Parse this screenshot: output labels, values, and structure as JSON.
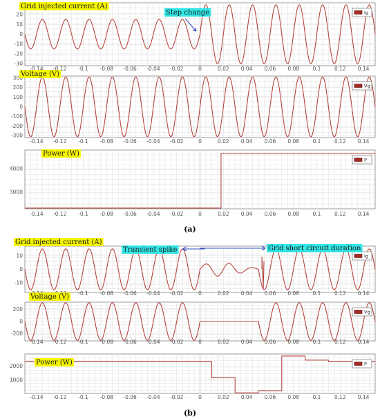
{
  "figures": [
    {
      "caption": "(a)",
      "panels": [
        {
          "id": "a-current",
          "label": "Grid injected current (A)",
          "legend": "Ig",
          "annotations": [
            {
              "text": "Step change",
              "points_to_x": 0
            }
          ]
        },
        {
          "id": "a-voltage",
          "label": "Voltage (V)",
          "legend": "Vg",
          "annotations": []
        },
        {
          "id": "a-power",
          "label": "Power (W)",
          "legend": "P",
          "annotations": []
        }
      ]
    },
    {
      "caption": "(b)",
      "panels": [
        {
          "id": "b-current",
          "label": "Grid injected current (A)",
          "legend": "Ig",
          "annotations": [
            {
              "text": "Transient spike",
              "points_to_x": -0.04
            },
            {
              "text": "Grid short circuit duration",
              "span_x": [
                0,
                0.05
              ]
            }
          ]
        },
        {
          "id": "b-voltage",
          "label": "Voltage (V)",
          "legend": "Vg",
          "annotations": []
        },
        {
          "id": "b-power",
          "label": "Power (W)",
          "legend": "P",
          "annotations": []
        }
      ]
    }
  ],
  "chart_data": [
    {
      "id": "a-current",
      "type": "line",
      "series": [
        {
          "name": "Ig"
        }
      ],
      "xlim": [
        -0.15,
        0.15
      ],
      "ylim": [
        -32,
        32
      ],
      "x_ticks": [
        -0.14,
        -0.12,
        -0.1,
        -0.08,
        -0.06,
        -0.04,
        -0.02,
        0,
        0.02,
        0.04,
        0.06,
        0.08,
        0.1,
        0.12,
        0.14
      ],
      "y_ticks": [
        -30,
        -20,
        -10,
        0,
        10,
        20
      ],
      "frequency_hz": 50,
      "segments": [
        {
          "x": [
            -0.15,
            0
          ],
          "amplitude": 15
        },
        {
          "x": [
            0,
            0.15
          ],
          "amplitude": 30
        }
      ]
    },
    {
      "id": "a-voltage",
      "type": "line",
      "series": [
        {
          "name": "Vg"
        }
      ],
      "xlim": [
        -0.15,
        0.15
      ],
      "ylim": [
        -320,
        320
      ],
      "x_ticks": [
        -0.14,
        -0.12,
        -0.1,
        -0.08,
        -0.06,
        -0.04,
        -0.02,
        0,
        0.02,
        0.04,
        0.06,
        0.08,
        0.1,
        0.12,
        0.14
      ],
      "y_ticks": [
        -300,
        -200,
        -100,
        0,
        100,
        200,
        300
      ],
      "frequency_hz": 50,
      "segments": [
        {
          "x": [
            -0.15,
            0.15
          ],
          "amplitude": 311
        }
      ]
    },
    {
      "id": "a-power",
      "type": "line",
      "series": [
        {
          "name": "P"
        }
      ],
      "xlim": [
        -0.15,
        0.15
      ],
      "ylim": [
        2300,
        4800
      ],
      "x_ticks": [
        -0.14,
        -0.12,
        -0.1,
        -0.08,
        -0.06,
        -0.04,
        -0.02,
        0,
        0.02,
        0.04,
        0.06,
        0.08,
        0.1,
        0.12,
        0.14
      ],
      "y_ticks": [
        3000,
        4000
      ],
      "steps": [
        {
          "x": -0.15,
          "y": 2330
        },
        {
          "x": 0.018,
          "y": 2330
        },
        {
          "x": 0.018,
          "y": 4660
        },
        {
          "x": 0.15,
          "y": 4660
        }
      ]
    },
    {
      "id": "b-current",
      "type": "line",
      "series": [
        {
          "name": "Ig"
        }
      ],
      "xlim": [
        -0.15,
        0.15
      ],
      "ylim": [
        -17,
        17
      ],
      "x_ticks": [
        -0.14,
        -0.12,
        -0.1,
        -0.08,
        -0.06,
        -0.04,
        -0.02,
        0,
        0.02,
        0.04,
        0.06,
        0.08,
        0.1,
        0.12,
        0.14
      ],
      "y_ticks": [
        -10,
        0,
        10
      ],
      "frequency_hz": 50,
      "segments": [
        {
          "x": [
            -0.15,
            0
          ],
          "amplitude": 15
        },
        {
          "x": [
            0,
            0.05
          ],
          "amplitude": 5,
          "damped": true
        },
        {
          "x": [
            0.05,
            0.15
          ],
          "amplitude": 15
        }
      ]
    },
    {
      "id": "b-voltage",
      "type": "line",
      "series": [
        {
          "name": "Vg"
        }
      ],
      "xlim": [
        -0.15,
        0.15
      ],
      "ylim": [
        -320,
        320
      ],
      "x_ticks": [
        -0.14,
        -0.12,
        -0.1,
        -0.08,
        -0.06,
        -0.04,
        -0.02,
        0,
        0.02,
        0.04,
        0.06,
        0.08,
        0.1,
        0.12,
        0.14
      ],
      "y_ticks": [
        -200,
        0,
        200
      ],
      "frequency_hz": 50,
      "segments": [
        {
          "x": [
            -0.15,
            0
          ],
          "amplitude": 311
        },
        {
          "x": [
            0,
            0.05
          ],
          "amplitude": 0
        },
        {
          "x": [
            0.05,
            0.15
          ],
          "amplitude": 311
        }
      ]
    },
    {
      "id": "b-power",
      "type": "line",
      "series": [
        {
          "name": "P"
        }
      ],
      "xlim": [
        -0.15,
        0.15
      ],
      "ylim": [
        0,
        2900
      ],
      "x_ticks": [
        -0.14,
        -0.12,
        -0.1,
        -0.08,
        -0.06,
        -0.04,
        -0.02,
        0,
        0.02,
        0.04,
        0.06,
        0.08,
        0.1,
        0.12,
        0.14
      ],
      "y_ticks": [
        1000,
        2000
      ],
      "steps": [
        {
          "x": -0.15,
          "y": 2350
        },
        {
          "x": 0.01,
          "y": 2350
        },
        {
          "x": 0.01,
          "y": 1150
        },
        {
          "x": 0.03,
          "y": 1150
        },
        {
          "x": 0.03,
          "y": 40
        },
        {
          "x": 0.05,
          "y": 40
        },
        {
          "x": 0.05,
          "y": 200
        },
        {
          "x": 0.07,
          "y": 200
        },
        {
          "x": 0.07,
          "y": 2750
        },
        {
          "x": 0.09,
          "y": 2750
        },
        {
          "x": 0.09,
          "y": 2450
        },
        {
          "x": 0.11,
          "y": 2450
        },
        {
          "x": 0.11,
          "y": 2350
        },
        {
          "x": 0.15,
          "y": 2350
        }
      ]
    }
  ]
}
